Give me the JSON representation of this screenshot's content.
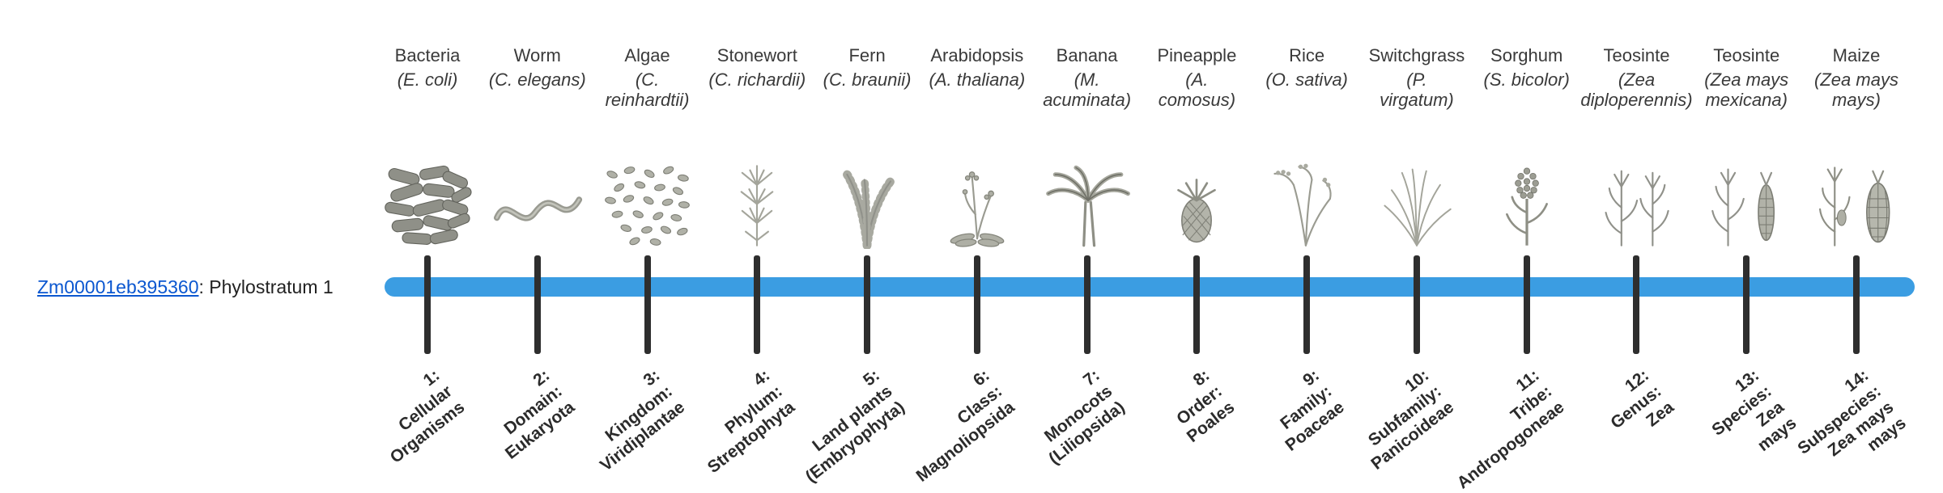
{
  "gene": {
    "id": "Zm00001eb395360",
    "suffix": ": Phylostratum 1"
  },
  "colors": {
    "bar_blue": "#3b9de2",
    "tick_dark": "#2e2e2e",
    "link_blue": "#0b57d0"
  },
  "timeline": {
    "bar_color": "#3b9de2",
    "tick_color": "#2e2e2e"
  },
  "organisms": [
    {
      "name": "Bacteria",
      "sci_lines": [
        "(E. coli)"
      ],
      "icon": "bacteria-icon",
      "stratum_lines": [
        "1:",
        "Cellular",
        "Organisms"
      ]
    },
    {
      "name": "Worm",
      "sci_lines": [
        "(C. elegans)"
      ],
      "icon": "worm-icon",
      "stratum_lines": [
        "2:",
        "Domain:",
        "Eukaryota"
      ]
    },
    {
      "name": "Algae",
      "sci_lines": [
        "(C.",
        "reinhardtii)"
      ],
      "icon": "algae-icon",
      "stratum_lines": [
        "3:",
        "Kingdom:",
        "Viridiplantae"
      ]
    },
    {
      "name": "Stonewort",
      "sci_lines": [
        "(C. richardii)"
      ],
      "icon": "stonewort-icon",
      "stratum_lines": [
        "4:",
        "Phylum:",
        "Streptophyta"
      ]
    },
    {
      "name": "Fern",
      "sci_lines": [
        "(C. braunii)"
      ],
      "icon": "fern-icon",
      "stratum_lines": [
        "5:",
        "Land plants",
        "(Embryophyta)"
      ]
    },
    {
      "name": "Arabidopsis",
      "sci_lines": [
        "(A. thaliana)"
      ],
      "icon": "arabidopsis-icon",
      "stratum_lines": [
        "6:",
        "Class:",
        "Magnoliopsida"
      ]
    },
    {
      "name": "Banana",
      "sci_lines": [
        "(M.",
        "acuminata)"
      ],
      "icon": "banana-icon",
      "stratum_lines": [
        "7:",
        "Monocots",
        "(Liliopsida)"
      ]
    },
    {
      "name": "Pineapple",
      "sci_lines": [
        "(A.",
        "comosus)"
      ],
      "icon": "pineapple-icon",
      "stratum_lines": [
        "8:",
        "Order:",
        "Poales"
      ]
    },
    {
      "name": "Rice",
      "sci_lines": [
        "(O. sativa)"
      ],
      "icon": "rice-icon",
      "stratum_lines": [
        "9:",
        "Family:",
        "Poaceae"
      ]
    },
    {
      "name": "Switchgrass",
      "sci_lines": [
        "(P.",
        "virgatum)"
      ],
      "icon": "switchgrass-icon",
      "stratum_lines": [
        "10:",
        "Subfamily:",
        "Panicoideae"
      ]
    },
    {
      "name": "Sorghum",
      "sci_lines": [
        "(S. bicolor)"
      ],
      "icon": "sorghum-icon",
      "stratum_lines": [
        "11:",
        "Tribe:",
        "Andropogoneae"
      ]
    },
    {
      "name": "Teosinte",
      "sci_lines": [
        "(Zea",
        "diploperennis)"
      ],
      "icon": "teosinte-icon",
      "stratum_lines": [
        "12:",
        "Genus:",
        "Zea"
      ]
    },
    {
      "name": "Teosinte",
      "sci_lines": [
        "(Zea mays",
        "mexicana)"
      ],
      "icon": "teosinte-ear-icon",
      "stratum_lines": [
        "13:",
        "Species:",
        "Zea",
        "mays"
      ]
    },
    {
      "name": "Maize",
      "sci_lines": [
        "(Zea mays",
        "mays)"
      ],
      "icon": "maize-icon",
      "stratum_lines": [
        "14:",
        "Subspecies:",
        "Zea mays",
        "mays"
      ]
    }
  ]
}
